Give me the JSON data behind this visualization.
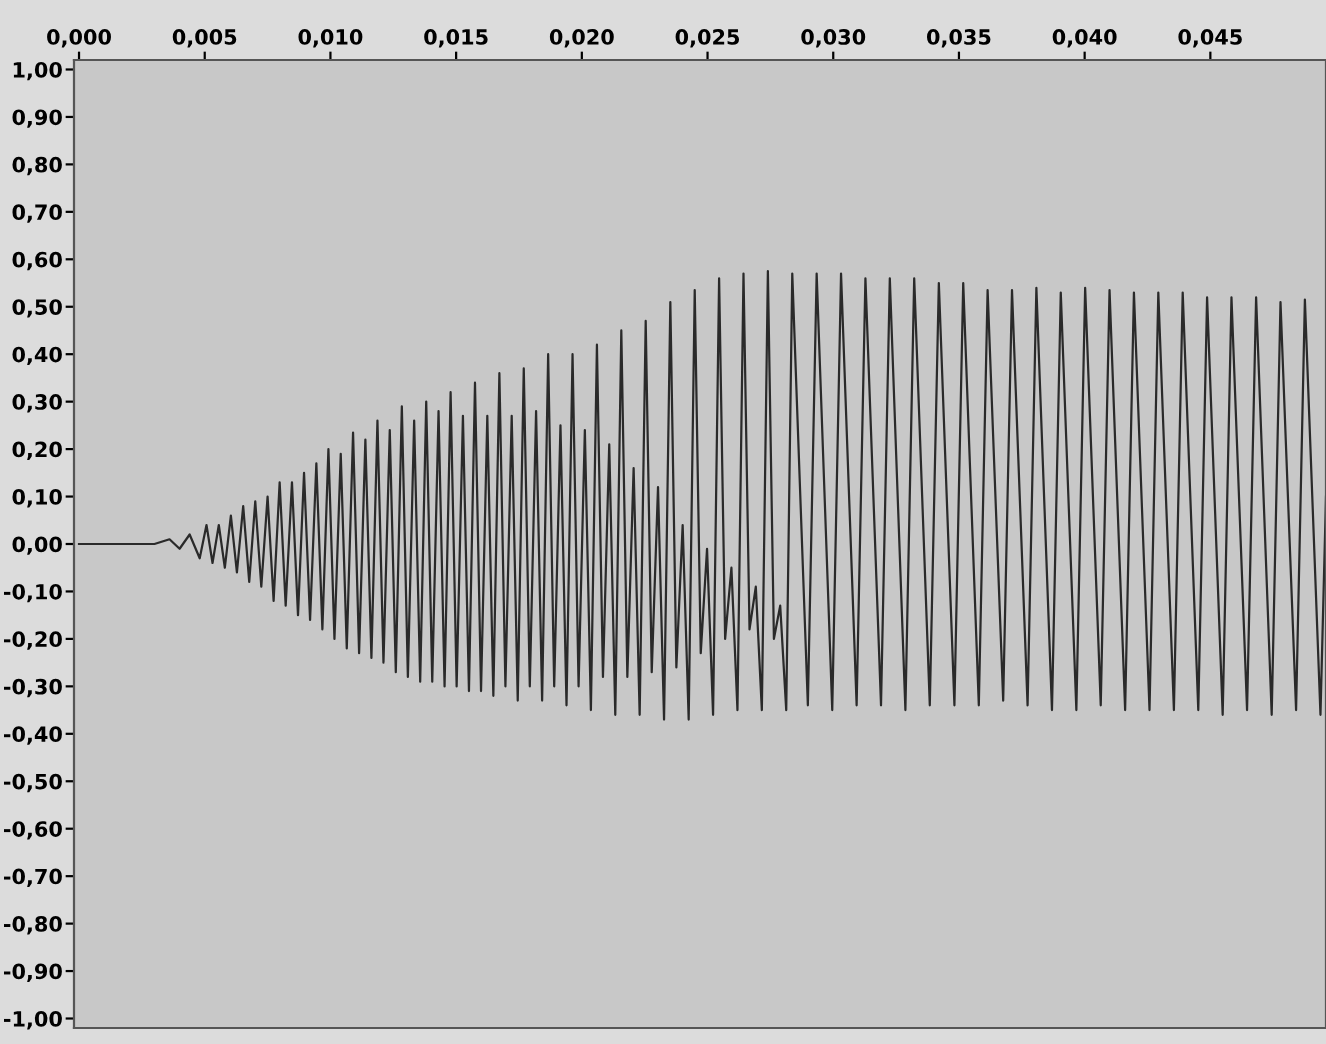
{
  "chart_data": {
    "type": "line",
    "xlim": [
      -0.0002,
      0.0496
    ],
    "xticks": [
      {
        "value": 0.0,
        "label": "0,000"
      },
      {
        "value": 0.005,
        "label": "0,005"
      },
      {
        "value": 0.01,
        "label": "0,010"
      },
      {
        "value": 0.015,
        "label": "0,015"
      },
      {
        "value": 0.02,
        "label": "0,020"
      },
      {
        "value": 0.025,
        "label": "0,025"
      },
      {
        "value": 0.03,
        "label": "0,030"
      },
      {
        "value": 0.035,
        "label": "0,035"
      },
      {
        "value": 0.04,
        "label": "0,040"
      },
      {
        "value": 0.045,
        "label": "0,045"
      }
    ],
    "ylim": [
      -1.02,
      1.02
    ],
    "yticks": [
      {
        "value": 1.0,
        "label": "1,00"
      },
      {
        "value": 0.9,
        "label": "0,90"
      },
      {
        "value": 0.8,
        "label": "0,80"
      },
      {
        "value": 0.7,
        "label": "0,70"
      },
      {
        "value": 0.6,
        "label": "0,60"
      },
      {
        "value": 0.5,
        "label": "0,50"
      },
      {
        "value": 0.4,
        "label": "0,40"
      },
      {
        "value": 0.3,
        "label": "0,30"
      },
      {
        "value": 0.2,
        "label": "0,20"
      },
      {
        "value": 0.1,
        "label": "0,10"
      },
      {
        "value": 0.0,
        "label": "0,00"
      },
      {
        "value": -0.1,
        "label": "-0,10"
      },
      {
        "value": -0.2,
        "label": "-0,20"
      },
      {
        "value": -0.3,
        "label": "-0,30"
      },
      {
        "value": -0.4,
        "label": "-0,40"
      },
      {
        "value": -0.5,
        "label": "-0,50"
      },
      {
        "value": -0.6,
        "label": "-0,60"
      },
      {
        "value": -0.7,
        "label": "-0,70"
      },
      {
        "value": -0.8,
        "label": "-0,80"
      },
      {
        "value": -0.9,
        "label": "-0,90"
      },
      {
        "value": -1.0,
        "label": "-1,00"
      }
    ],
    "grid": false,
    "marker": "none",
    "line_style": "solid",
    "series": [
      {
        "color": "#2a2a2a",
        "x": [
          0,
          0.003,
          0.0036,
          0.004,
          0.0044,
          0.0048,
          0.00507,
          0.00531,
          0.00556,
          0.0058,
          0.00604,
          0.00628,
          0.00653,
          0.00677,
          0.00701,
          0.00725,
          0.0075,
          0.00774,
          0.00798,
          0.00822,
          0.00847,
          0.00871,
          0.00895,
          0.00919,
          0.00944,
          0.00968,
          0.00992,
          0.01016,
          0.01041,
          0.01065,
          0.0109,
          0.01114,
          0.01139,
          0.01163,
          0.01187,
          0.01211,
          0.01236,
          0.0126,
          0.01284,
          0.01308,
          0.01333,
          0.01357,
          0.01381,
          0.01405,
          0.0143,
          0.01454,
          0.01478,
          0.01502,
          0.01527,
          0.01551,
          0.01575,
          0.01599,
          0.01624,
          0.01648,
          0.01672,
          0.01696,
          0.01721,
          0.01745,
          0.01769,
          0.01793,
          0.01818,
          0.01842,
          0.01866,
          0.0189,
          0.01915,
          0.01939,
          0.01963,
          0.01987,
          0.02012,
          0.02036,
          0.0206,
          0.02084,
          0.02109,
          0.02133,
          0.02157,
          0.02181,
          0.02206,
          0.0223,
          0.02254,
          0.02278,
          0.02303,
          0.02327,
          0.02352,
          0.02376,
          0.02401,
          0.02425,
          0.02449,
          0.02473,
          0.02498,
          0.02522,
          0.02546,
          0.0257,
          0.02595,
          0.02619,
          0.02643,
          0.02667,
          0.02692,
          0.02716,
          0.0274,
          0.02764,
          0.02789,
          0.02813,
          0.02837,
          0.02899,
          0.02934,
          0.02996,
          0.03031,
          0.03093,
          0.03128,
          0.0319,
          0.03225,
          0.03287,
          0.03322,
          0.03384,
          0.0342,
          0.03482,
          0.03517,
          0.03579,
          0.03614,
          0.03676,
          0.03711,
          0.03773,
          0.03808,
          0.0387,
          0.03905,
          0.03967,
          0.04002,
          0.04064,
          0.04099,
          0.04161,
          0.04196,
          0.04258,
          0.04293,
          0.04355,
          0.0439,
          0.04452,
          0.04487,
          0.04549,
          0.04584,
          0.04646,
          0.04682,
          0.04744,
          0.04779,
          0.04841,
          0.04876,
          0.04938,
          0.0496
        ],
        "values": [
          0,
          0,
          0.01,
          -0.01,
          0.02,
          -0.03,
          0.04,
          -0.04,
          0.04,
          -0.05,
          0.06,
          -0.06,
          0.08,
          -0.08,
          0.09,
          -0.09,
          0.1,
          -0.12,
          0.13,
          -0.13,
          0.13,
          -0.15,
          0.15,
          -0.16,
          0.17,
          -0.18,
          0.2,
          -0.2,
          0.19,
          -0.22,
          0.235,
          -0.23,
          0.22,
          -0.24,
          0.26,
          -0.25,
          0.24,
          -0.27,
          0.29,
          -0.28,
          0.26,
          -0.29,
          0.3,
          -0.29,
          0.28,
          -0.3,
          0.32,
          -0.3,
          0.27,
          -0.31,
          0.34,
          -0.31,
          0.27,
          -0.32,
          0.36,
          -0.3,
          0.27,
          -0.33,
          0.37,
          -0.3,
          0.28,
          -0.33,
          0.4,
          -0.3,
          0.25,
          -0.34,
          0.4,
          -0.3,
          0.24,
          -0.35,
          0.42,
          -0.28,
          0.21,
          -0.36,
          0.45,
          -0.28,
          0.16,
          -0.36,
          0.47,
          -0.27,
          0.12,
          -0.37,
          0.51,
          -0.26,
          0.04,
          -0.37,
          0.535,
          -0.23,
          -0.01,
          -0.36,
          0.56,
          -0.2,
          -0.05,
          -0.35,
          0.57,
          -0.18,
          -0.09,
          -0.35,
          0.575,
          -0.2,
          -0.13,
          -0.35,
          0.57,
          -0.34,
          0.57,
          -0.35,
          0.57,
          -0.34,
          0.56,
          -0.34,
          0.56,
          -0.35,
          0.56,
          -0.34,
          0.55,
          -0.34,
          0.55,
          -0.34,
          0.535,
          -0.33,
          0.535,
          -0.34,
          0.54,
          -0.35,
          0.53,
          -0.35,
          0.54,
          -0.34,
          0.535,
          -0.35,
          0.53,
          -0.35,
          0.53,
          -0.35,
          0.53,
          -0.35,
          0.52,
          -0.36,
          0.52,
          -0.35,
          0.52,
          -0.36,
          0.51,
          -0.35,
          0.515,
          -0.36,
          0.1
        ]
      }
    ]
  }
}
